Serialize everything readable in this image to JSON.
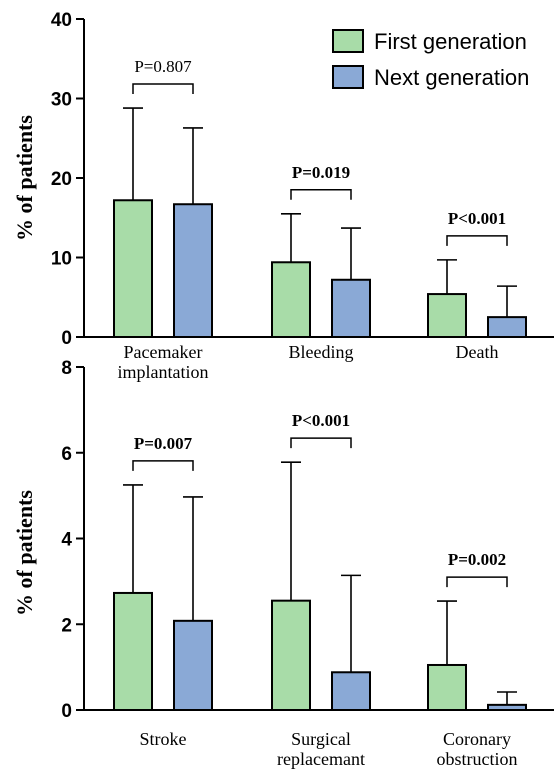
{
  "chart_data": [
    {
      "type": "bar",
      "ylabel": "% of patients",
      "ylim": [
        0,
        40
      ],
      "yticks": [
        0,
        10,
        20,
        30,
        40
      ],
      "categories": [
        "Pacemaker\nimplantation",
        "Bleeding",
        "Death"
      ],
      "series": [
        {
          "name": "First generation",
          "color": "#a8dca8",
          "values": [
            17.2,
            9.4,
            5.4
          ],
          "error": [
            28.8,
            15.5,
            9.7
          ]
        },
        {
          "name": "Next generation",
          "color": "#8aa9d6",
          "values": [
            16.7,
            7.2,
            2.5
          ],
          "error": [
            26.3,
            13.7,
            6.4
          ]
        }
      ],
      "pvalues": [
        "P=0.807",
        "P=0.019",
        "P<0.001"
      ],
      "pvalue_bold": [
        false,
        true,
        true
      ],
      "legend": "top-right"
    },
    {
      "type": "bar",
      "ylabel": "% of patients",
      "ylim": [
        0,
        8
      ],
      "yticks": [
        0,
        2,
        4,
        6,
        8
      ],
      "categories": [
        "Stroke",
        "Surgical\nreplacemant",
        "Coronary\nobstruction"
      ],
      "series": [
        {
          "name": "First generation",
          "color": "#a8dca8",
          "values": [
            2.73,
            2.55,
            1.05
          ],
          "error": [
            5.25,
            5.78,
            2.54
          ]
        },
        {
          "name": "Next generation",
          "color": "#8aa9d6",
          "values": [
            2.08,
            0.88,
            0.12
          ],
          "error": [
            4.97,
            3.14,
            0.42
          ]
        }
      ],
      "pvalues": [
        "P=0.007",
        "P<0.001",
        "P=0.002"
      ],
      "pvalue_bold": [
        true,
        true,
        true
      ]
    }
  ]
}
